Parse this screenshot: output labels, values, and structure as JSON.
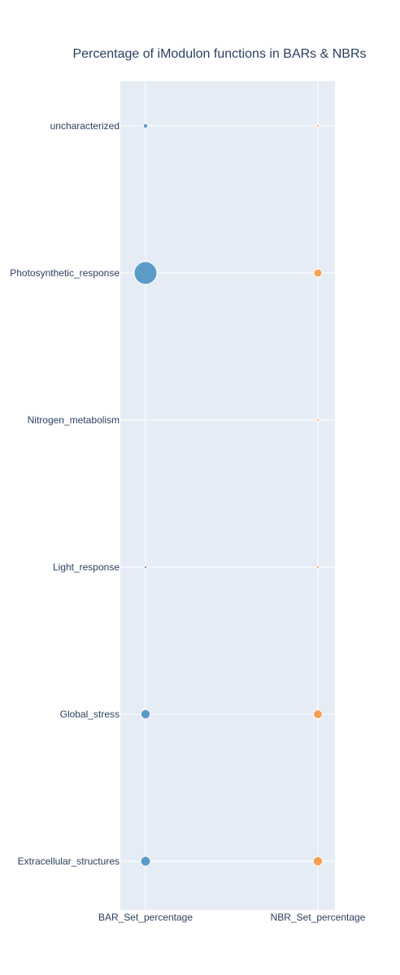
{
  "chart_data": {
    "type": "scatter",
    "title": "Percentage of iModulon functions in BARs & NBRs",
    "x_categories": [
      "BAR_Set_percentage",
      "NBR_Set_percentage"
    ],
    "y_categories": [
      "uncharacterized",
      "Photosynthetic_response",
      "Nitrogen_metabolism",
      "Light_response",
      "Global_stress",
      "Extracellular_structures"
    ],
    "series": [
      {
        "category": "BAR_Set_percentage",
        "color": "#5b9bc8",
        "points": [
          {
            "function": "uncharacterized",
            "value": 3
          },
          {
            "function": "Photosynthetic_response",
            "value": 72
          },
          {
            "function": "Nitrogen_metabolism",
            "value": 0
          },
          {
            "function": "Light_response",
            "value": 1
          },
          {
            "function": "Global_stress",
            "value": 12
          },
          {
            "function": "Extracellular_structures",
            "value": 13
          }
        ]
      },
      {
        "category": "NBR_Set_percentage",
        "color": "#f5a052",
        "points": [
          {
            "function": "uncharacterized",
            "value": 1
          },
          {
            "function": "Photosynthetic_response",
            "value": 9
          },
          {
            "function": "Nitrogen_metabolism",
            "value": 1
          },
          {
            "function": "Light_response",
            "value": 1
          },
          {
            "function": "Global_stress",
            "value": 11
          },
          {
            "function": "Extracellular_structures",
            "value": 12
          }
        ]
      }
    ],
    "grid": true,
    "legend": "none",
    "background_color": "#e5ecf6",
    "grid_color": "#ffffff",
    "text_color": "#2a3f5f"
  }
}
